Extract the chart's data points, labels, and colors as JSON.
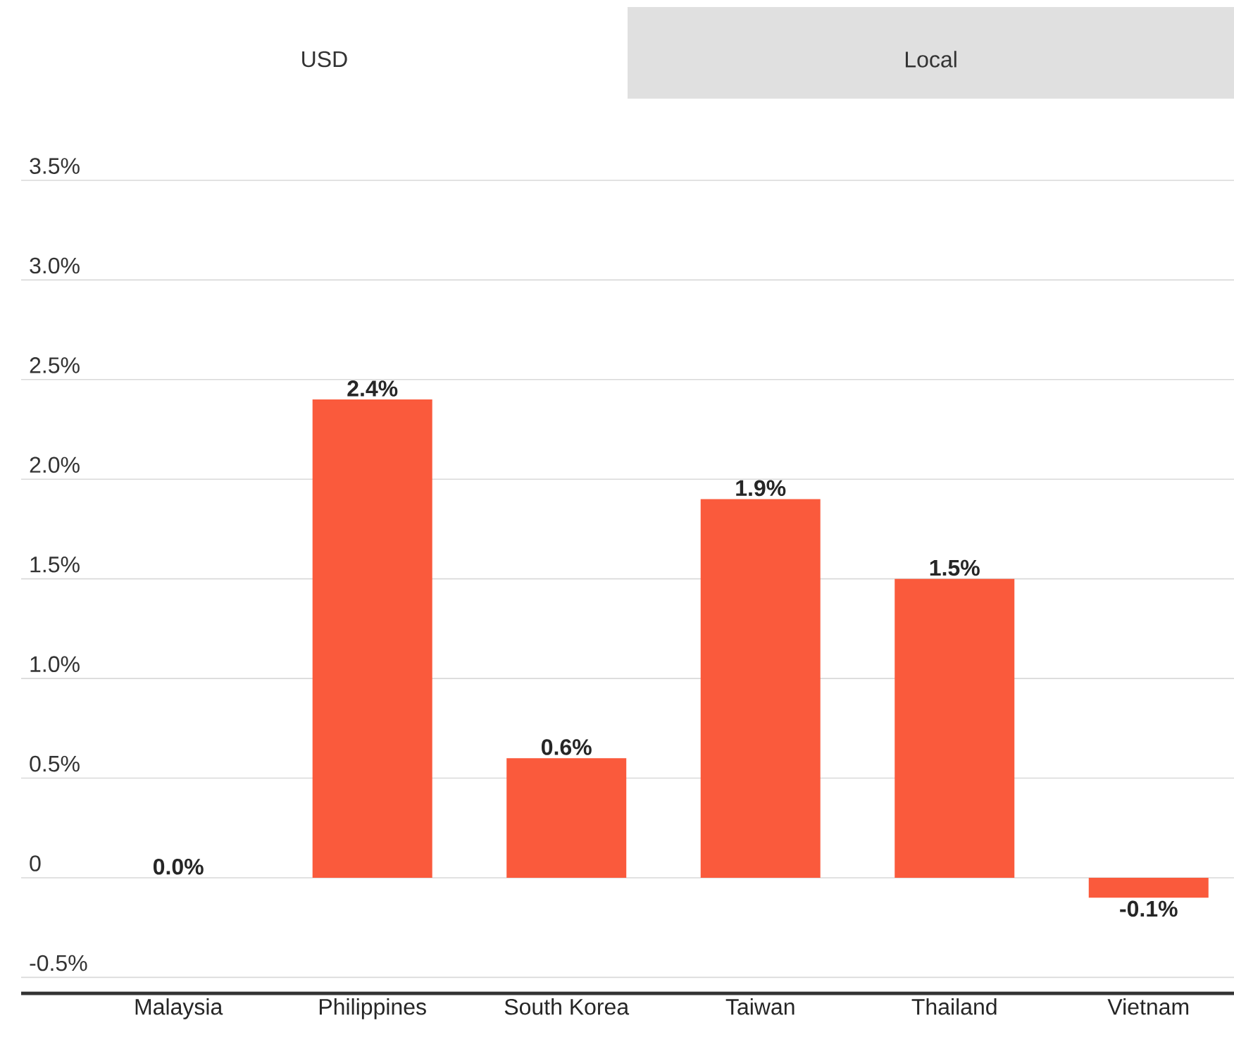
{
  "chart_data": {
    "type": "bar",
    "categories": [
      "Malaysia",
      "Philippines",
      "South Korea",
      "Taiwan",
      "Thailand",
      "Vietnam"
    ],
    "values": [
      0.0,
      2.4,
      0.6,
      1.9,
      1.5,
      -0.1
    ],
    "value_labels": [
      "0.0%",
      "2.4%",
      "0.6%",
      "1.9%",
      "1.5%",
      "-0.1%"
    ],
    "color": "#fa5a3c",
    "ylim": [
      -0.58,
      3.5
    ],
    "yticks": [
      {
        "value": -0.5,
        "label": "-0.5%"
      },
      0,
      {
        "value": 0.5,
        "label": "0.5%"
      },
      {
        "value": 1.0,
        "label": "1.0%"
      },
      {
        "value": 1.5,
        "label": "1.5%"
      },
      {
        "value": 2.0,
        "label": "2.0%"
      },
      {
        "value": 2.5,
        "label": "2.5%"
      },
      {
        "value": 3.0,
        "label": "3.0%"
      },
      {
        "value": 3.5,
        "label": "3.5%"
      }
    ],
    "grid": "y",
    "annotations": [
      "USD",
      "Local"
    ]
  }
}
